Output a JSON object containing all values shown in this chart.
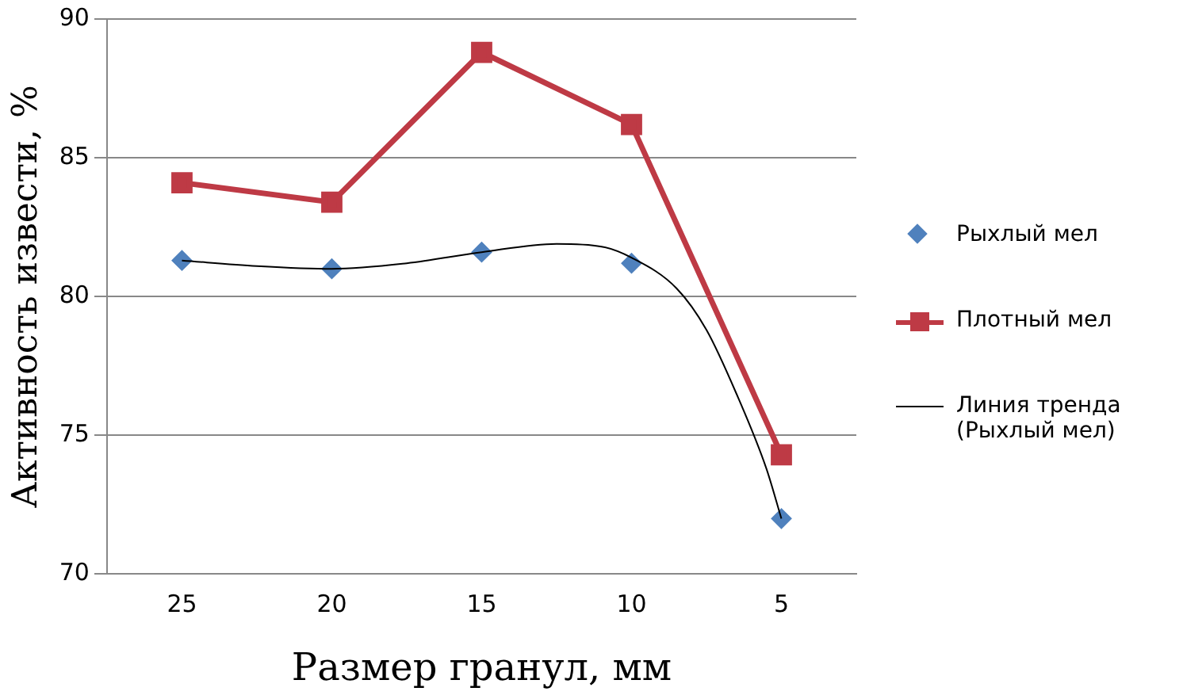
{
  "chart_data": {
    "type": "line",
    "xlabel": "Размер гранул, мм",
    "ylabel": "Активность извести, %",
    "x": [
      25,
      20,
      15,
      10,
      5
    ],
    "xlim": [
      27.5,
      2.5
    ],
    "xticks": [
      25,
      20,
      15,
      10,
      5
    ],
    "ylim": [
      70,
      90
    ],
    "yticks": [
      70,
      75,
      80,
      85,
      90
    ],
    "grid": "y",
    "legend": "right",
    "series": [
      {
        "name": "Рыхлый мел",
        "type": "scatter",
        "color": "#4f81bd",
        "marker": "diamond",
        "values": [
          81.3,
          81.0,
          81.6,
          81.2,
          72.0
        ]
      },
      {
        "name": "Плотный мел",
        "type": "line",
        "color": "#be3a45",
        "marker": "square",
        "values": [
          84.1,
          83.4,
          88.8,
          86.2,
          74.3
        ]
      },
      {
        "name": "Линия тренда (Рыхлый мел)",
        "type": "line",
        "color": "#000000",
        "marker": "none",
        "x": [
          25,
          22.5,
          20,
          17.5,
          15,
          12.5,
          11,
          10,
          8.5,
          7.5,
          6.5,
          5.5,
          5
        ],
        "values": [
          81.3,
          81.1,
          81.0,
          81.2,
          81.6,
          81.9,
          81.8,
          81.4,
          80.3,
          78.8,
          76.5,
          73.8,
          72.0
        ]
      }
    ]
  }
}
